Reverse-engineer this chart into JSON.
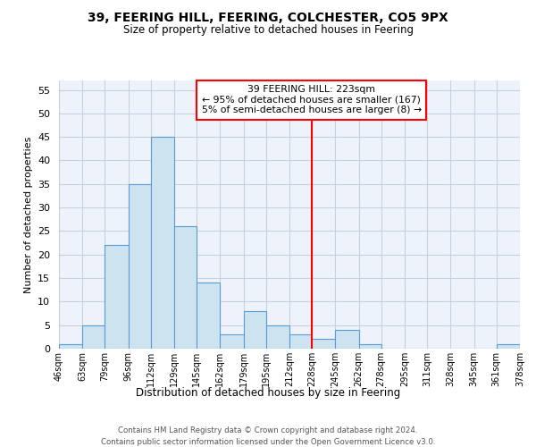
{
  "title": "39, FEERING HILL, FEERING, COLCHESTER, CO5 9PX",
  "subtitle": "Size of property relative to detached houses in Feering",
  "xlabel": "Distribution of detached houses by size in Feering",
  "ylabel": "Number of detached properties",
  "bin_edges": [
    46,
    63,
    79,
    96,
    112,
    129,
    145,
    162,
    179,
    195,
    212,
    228,
    245,
    262,
    278,
    295,
    311,
    328,
    345,
    361,
    378
  ],
  "bar_heights": [
    1,
    5,
    22,
    35,
    45,
    26,
    14,
    3,
    8,
    5,
    3,
    2,
    4,
    1,
    0,
    0,
    0,
    0,
    0,
    1
  ],
  "bar_color": "#cde4f0",
  "bar_edge_color": "#5b9bd5",
  "vline_x": 228,
  "vline_color": "red",
  "ylim": [
    0,
    57
  ],
  "yticks": [
    0,
    5,
    10,
    15,
    20,
    25,
    30,
    35,
    40,
    45,
    50,
    55
  ],
  "tick_labels": [
    "46sqm",
    "63sqm",
    "79sqm",
    "96sqm",
    "112sqm",
    "129sqm",
    "145sqm",
    "162sqm",
    "179sqm",
    "195sqm",
    "212sqm",
    "228sqm",
    "245sqm",
    "262sqm",
    "278sqm",
    "295sqm",
    "311sqm",
    "328sqm",
    "345sqm",
    "361sqm",
    "378sqm"
  ],
  "annotation_title": "39 FEERING HILL: 223sqm",
  "annotation_line1": "← 95% of detached houses are smaller (167)",
  "annotation_line2": "5% of semi-detached houses are larger (8) →",
  "footer1": "Contains HM Land Registry data © Crown copyright and database right 2024.",
  "footer2": "Contains public sector information licensed under the Open Government Licence v3.0.",
  "background_color": "#eef2fb",
  "grid_color": "#c8d0e0"
}
